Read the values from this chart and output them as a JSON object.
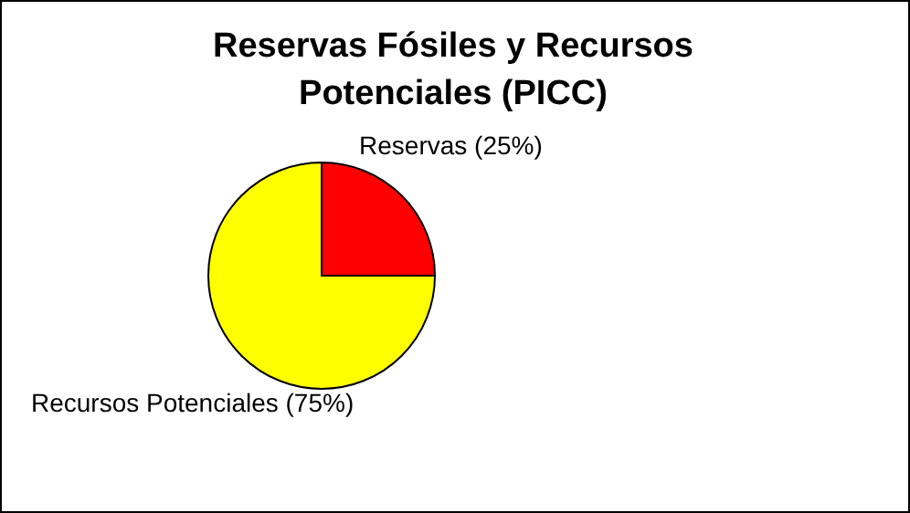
{
  "chart_data": {
    "type": "pie",
    "title": "Reservas Fósiles y Recursos Potenciales (PICC)",
    "categories": [
      "Reservas (25%)",
      "Recursos Potenciales (75%)"
    ],
    "values": [
      25,
      75
    ],
    "colors": [
      "#ff0000",
      "#ffff00"
    ],
    "legend": false
  }
}
